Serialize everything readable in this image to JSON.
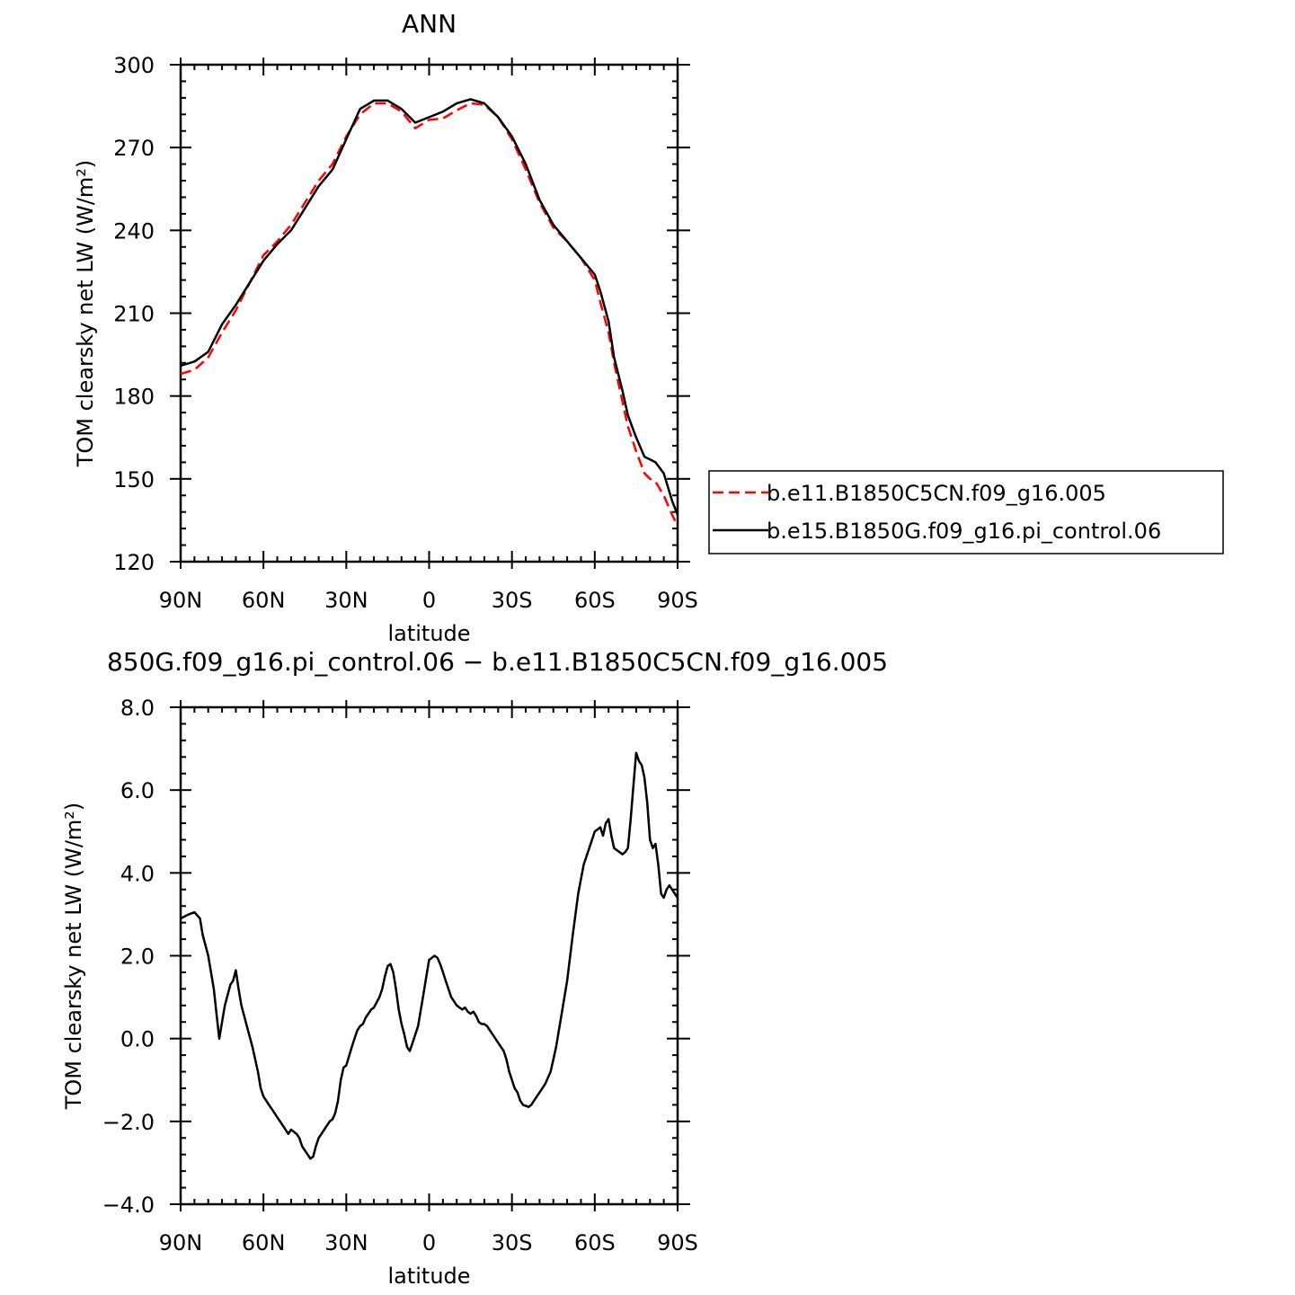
{
  "chart_data": [
    {
      "type": "line",
      "title": "ANN",
      "xlabel": "latitude",
      "ylabel": "TOM clearsky net LW (W/m²)",
      "xlim": [
        90,
        -90
      ],
      "ylim": [
        120,
        300
      ],
      "x_tick_values": [
        90,
        60,
        30,
        0,
        -30,
        -60,
        -90
      ],
      "x_tick_labels": [
        "90N",
        "60N",
        "30N",
        "0",
        "30S",
        "60S",
        "90S"
      ],
      "y_tick_values": [
        120,
        150,
        180,
        210,
        240,
        270,
        300
      ],
      "y_tick_labels": [
        "120",
        "150",
        "180",
        "210",
        "240",
        "270",
        "300"
      ],
      "legend": {
        "placement": "right"
      },
      "series": [
        {
          "name": "b.e11.B1850C5CN.f09_g16.005",
          "color": "#ff0000",
          "dash": "dashed",
          "x": [
            90,
            85,
            80,
            75,
            70,
            65,
            60,
            55,
            50,
            45,
            40,
            35,
            30,
            25,
            20,
            15,
            10,
            5,
            0,
            -5,
            -10,
            -15,
            -20,
            -25,
            -30,
            -35,
            -40,
            -45,
            -50,
            -55,
            -60,
            -62,
            -65,
            -67,
            -70,
            -72,
            -75,
            -78,
            -80,
            -82,
            -85,
            -88,
            -90
          ],
          "y": [
            188,
            189.5,
            194,
            203,
            211,
            221,
            231,
            236,
            242,
            250,
            258,
            264,
            274,
            282,
            286,
            286,
            283,
            277,
            280,
            280.5,
            283.5,
            286,
            285.5,
            281,
            273,
            262,
            250,
            241,
            236,
            230,
            222,
            214,
            203,
            192,
            178,
            169,
            160,
            152,
            150,
            149,
            144,
            137,
            133
          ]
        },
        {
          "name": "b.e15.B1850G.f09_g16.pi_control.06",
          "color": "#000000",
          "dash": "solid",
          "x": [
            90,
            85,
            80,
            75,
            70,
            65,
            60,
            55,
            50,
            45,
            40,
            35,
            30,
            25,
            20,
            15,
            10,
            5,
            0,
            -5,
            -10,
            -15,
            -20,
            -25,
            -30,
            -35,
            -40,
            -45,
            -50,
            -55,
            -60,
            -62,
            -65,
            -67,
            -70,
            -72,
            -75,
            -78,
            -80,
            -82,
            -85,
            -88,
            -90
          ],
          "y": [
            191,
            192.5,
            196,
            206,
            213,
            221,
            229,
            235,
            240,
            248,
            256,
            262,
            273,
            284,
            287,
            287,
            284,
            279,
            281,
            283,
            286,
            287.5,
            286,
            281,
            274,
            264,
            251,
            242,
            236,
            230,
            224,
            218,
            207,
            194,
            182,
            173,
            165,
            158,
            157,
            156,
            152,
            142,
            137
          ]
        }
      ]
    },
    {
      "type": "line",
      "title": "850G.f09_g16.pi_control.06 − b.e11.B1850C5CN.f09_g16.005",
      "xlabel": "latitude",
      "ylabel": "TOM clearsky net LW (W/m²)",
      "xlim": [
        90,
        -90
      ],
      "ylim": [
        -4.0,
        8.0
      ],
      "x_tick_values": [
        90,
        60,
        30,
        0,
        -30,
        -60,
        -90
      ],
      "x_tick_labels": [
        "90N",
        "60N",
        "30N",
        "0",
        "30S",
        "60S",
        "90S"
      ],
      "y_tick_values": [
        -4.0,
        -2.0,
        0.0,
        2.0,
        4.0,
        6.0,
        8.0
      ],
      "y_tick_labels": [
        "−4.0",
        "−2.0",
        "0.0",
        "2.0",
        "4.0",
        "6.0",
        "8.0"
      ],
      "series": [
        {
          "color": "#000000",
          "dash": "solid",
          "x": [
            90,
            87,
            85,
            83,
            82,
            80,
            79,
            78,
            77,
            76,
            74,
            72,
            71,
            70,
            69,
            68,
            66,
            64,
            62,
            61,
            60,
            58,
            56,
            55,
            53,
            51,
            50,
            48,
            47,
            46,
            44,
            43,
            42,
            41,
            40,
            39,
            38,
            37,
            36,
            35,
            34,
            33,
            32,
            31,
            30,
            28,
            27,
            26,
            25,
            24,
            23,
            22,
            21,
            20,
            18,
            17,
            16,
            15,
            14,
            13,
            12,
            11,
            10,
            9,
            8,
            7,
            6,
            4,
            3,
            2,
            1,
            0,
            -2,
            -3,
            -4,
            -5,
            -6,
            -7,
            -8,
            -9,
            -10,
            -11,
            -12,
            -13,
            -14,
            -15,
            -16,
            -17,
            -18,
            -19,
            -20,
            -21,
            -22,
            -23,
            -24,
            -25,
            -26,
            -27,
            -28,
            -29,
            -30,
            -31,
            -32,
            -33,
            -34,
            -36,
            -37,
            -38,
            -40,
            -42,
            -44,
            -45,
            -46,
            -47,
            -48,
            -50,
            -52,
            -54,
            -56,
            -58,
            -60,
            -62,
            -63,
            -64,
            -65,
            -66,
            -67,
            -68,
            -69,
            -70,
            -71,
            -72,
            -73,
            -74,
            -75,
            -76,
            -77,
            -78,
            -79,
            -80,
            -81,
            -82,
            -83,
            -84,
            -85,
            -86,
            -87,
            -88,
            -89,
            -90
          ],
          "y": [
            2.9,
            3.0,
            3.05,
            2.9,
            2.5,
            2.0,
            1.6,
            1.2,
            0.6,
            0.0,
            0.8,
            1.3,
            1.4,
            1.65,
            1.2,
            0.8,
            0.3,
            -0.2,
            -0.8,
            -1.2,
            -1.4,
            -1.6,
            -1.8,
            -1.9,
            -2.1,
            -2.3,
            -2.2,
            -2.3,
            -2.4,
            -2.6,
            -2.8,
            -2.9,
            -2.85,
            -2.6,
            -2.4,
            -2.3,
            -2.2,
            -2.1,
            -2.0,
            -1.95,
            -1.8,
            -1.5,
            -1.0,
            -0.7,
            -0.65,
            -0.2,
            0.0,
            0.2,
            0.3,
            0.35,
            0.5,
            0.6,
            0.7,
            0.75,
            1.0,
            1.2,
            1.5,
            1.75,
            1.8,
            1.6,
            1.2,
            0.7,
            0.35,
            0.1,
            -0.2,
            -0.3,
            -0.1,
            0.3,
            0.7,
            1.1,
            1.5,
            1.9,
            2.0,
            1.95,
            1.8,
            1.6,
            1.4,
            1.2,
            1.0,
            0.9,
            0.8,
            0.75,
            0.7,
            0.75,
            0.65,
            0.6,
            0.65,
            0.55,
            0.4,
            0.35,
            0.35,
            0.3,
            0.2,
            0.1,
            0.0,
            -0.1,
            -0.2,
            -0.3,
            -0.5,
            -0.8,
            -1.0,
            -1.2,
            -1.3,
            -1.5,
            -1.6,
            -1.65,
            -1.6,
            -1.5,
            -1.3,
            -1.1,
            -0.8,
            -0.5,
            -0.2,
            0.2,
            0.6,
            1.4,
            2.5,
            3.5,
            4.2,
            4.6,
            5.0,
            5.1,
            4.9,
            5.2,
            5.3,
            4.9,
            4.6,
            4.55,
            4.5,
            4.45,
            4.5,
            4.6,
            5.3,
            6.1,
            6.9,
            6.7,
            6.6,
            6.3,
            5.7,
            4.8,
            4.6,
            4.7,
            4.2,
            3.5,
            3.4,
            3.6,
            3.7,
            3.6,
            3.5,
            3.4
          ]
        }
      ]
    }
  ]
}
